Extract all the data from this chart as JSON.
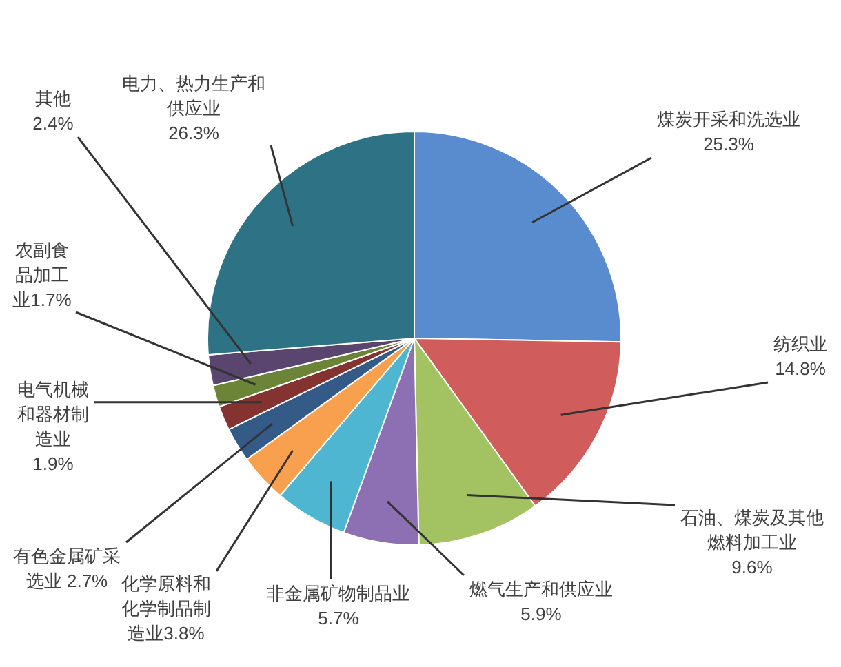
{
  "chart_data": {
    "type": "pie",
    "categories": [
      "煤炭开采和洗选业",
      "纺织业",
      "石油、煤炭及其他燃料加工业",
      "燃气生产和供应业",
      "非金属矿物制品业",
      "化学原料和化学制品制造业",
      "有色金属矿采选业",
      "电气机械和器材制造业",
      "农副食品加工业",
      "其他",
      "电力、热力生产和供应业"
    ],
    "values": [
      25.3,
      14.8,
      9.6,
      5.9,
      5.7,
      3.8,
      2.7,
      1.9,
      1.7,
      2.4,
      26.3
    ],
    "colors": [
      "#588ccf",
      "#d05c5b",
      "#a3c363",
      "#8d6fb3",
      "#4fb6d2",
      "#f9a04f",
      "#345a87",
      "#843331",
      "#6b8437",
      "#5a456f",
      "#2e7385"
    ],
    "value_labels": [
      "25.3%",
      "14.8%",
      "9.6%",
      "5.9%",
      "5.7%",
      "3.8%",
      "2.7%",
      "1.9%",
      "1.7%",
      "2.4%",
      "26.3%"
    ]
  }
}
